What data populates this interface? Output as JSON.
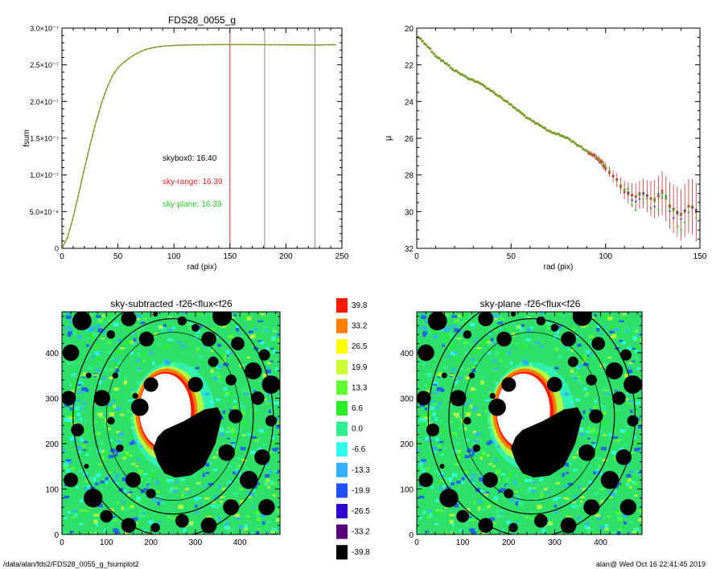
{
  "chart_data": [
    {
      "type": "line",
      "title": "FDS28_0055_g",
      "xlabel": "rad (pix)",
      "ylabel": "fsum",
      "xlim": [
        0,
        250
      ],
      "ylim": [
        0,
        3e-07
      ],
      "xticks": [
        "0",
        "50",
        "100",
        "150",
        "200",
        "250"
      ],
      "yticks": [
        "0",
        "5.0×10⁻⁸",
        "1.0×10⁻⁷",
        "1.5×10⁻⁷",
        "2.0×10⁻⁷",
        "2.5×10⁻⁷",
        "3.0×10⁻⁷"
      ],
      "vlines": [
        {
          "x": 150,
          "color": "#cc3333"
        },
        {
          "x": 181,
          "color": "#888888"
        },
        {
          "x": 226,
          "color": "#888888"
        }
      ],
      "series": [
        {
          "color": "#7a9a2a",
          "x": [
            0,
            5,
            10,
            15,
            20,
            25,
            30,
            35,
            40,
            45,
            50,
            55,
            60,
            65,
            70,
            75,
            80,
            90,
            100,
            110,
            120,
            130,
            140,
            150,
            160,
            170,
            180,
            190,
            200,
            210,
            220,
            230,
            240,
            245
          ],
          "y": [
            0,
            1.5e-08,
            4.2e-08,
            7.5e-08,
            1.08e-07,
            1.4e-07,
            1.7e-07,
            1.96e-07,
            2.18e-07,
            2.35e-07,
            2.46e-07,
            2.53e-07,
            2.59e-07,
            2.64e-07,
            2.68e-07,
            2.71e-07,
            2.73e-07,
            2.755e-07,
            2.765e-07,
            2.77e-07,
            2.772e-07,
            2.774e-07,
            2.775e-07,
            2.776e-07,
            2.776e-07,
            2.775e-07,
            2.774e-07,
            2.773e-07,
            2.772e-07,
            2.771e-07,
            2.77e-07,
            2.77e-07,
            2.775e-07,
            2.772e-07
          ]
        }
      ],
      "annotations": [
        {
          "text": "skybox0: 16.40",
          "color": "#000000"
        },
        {
          "text": "sky-range: 16.39",
          "color": "#ee2222"
        },
        {
          "text": "sky-plane: 16.39",
          "color": "#22cc22"
        }
      ]
    },
    {
      "type": "scatter",
      "xlabel": "rad (pix)",
      "ylabel": "μ",
      "xlim": [
        0,
        150
      ],
      "ylim": [
        32,
        20
      ],
      "xticks": [
        "0",
        "50",
        "100",
        "150"
      ],
      "yticks": [
        "20",
        "22",
        "24",
        "26",
        "28",
        "30",
        "32"
      ],
      "profile": {
        "x": [
          1,
          5,
          10,
          15,
          20,
          25,
          30,
          35,
          40,
          45,
          50,
          55,
          60,
          65,
          70,
          75,
          80,
          85,
          90,
          95,
          100,
          105,
          110,
          115,
          120,
          125,
          130,
          135,
          140,
          145,
          148
        ],
        "y": [
          20.5,
          20.9,
          21.5,
          21.9,
          22.3,
          22.6,
          22.85,
          23.1,
          23.45,
          23.8,
          24.2,
          24.6,
          25.0,
          25.3,
          25.6,
          25.8,
          26.0,
          26.35,
          26.7,
          27.0,
          27.6,
          28.2,
          28.8,
          29.2,
          29.0,
          29.4,
          29.0,
          29.8,
          30.2,
          29.6,
          30.0
        ],
        "err": [
          0.02,
          0.02,
          0.02,
          0.02,
          0.02,
          0.03,
          0.03,
          0.03,
          0.03,
          0.04,
          0.04,
          0.05,
          0.05,
          0.06,
          0.06,
          0.07,
          0.08,
          0.09,
          0.1,
          0.15,
          0.25,
          0.35,
          0.5,
          0.7,
          0.8,
          1.0,
          1.2,
          1.3,
          1.4,
          1.5,
          1.6
        ]
      },
      "series_colors": [
        "#7a9a2a",
        "#cc3333",
        "#3333cc",
        "#22cc22"
      ]
    },
    {
      "type": "heatmap",
      "title": "sky-subtracted -f26<flux<f26",
      "xlim": [
        0,
        490
      ],
      "ylim": [
        0,
        490
      ],
      "xticks": [
        "0",
        "100",
        "200",
        "300",
        "400"
      ],
      "yticks": [
        "0",
        "100",
        "200",
        "300",
        "400"
      ]
    },
    {
      "type": "heatmap",
      "title": "sky-plane -f26<flux<f26",
      "xlim": [
        0,
        490
      ],
      "ylim": [
        0,
        490
      ],
      "xticks": [
        "0",
        "100",
        "200",
        "300",
        "400"
      ],
      "yticks": [
        "0",
        "100",
        "200",
        "300",
        "400"
      ]
    }
  ],
  "colorbar": {
    "labels": [
      "39.8",
      "33.2",
      "26.5",
      "19.9",
      "13.3",
      "6.6",
      "0.0",
      "-6.6",
      "-13.3",
      "-19.9",
      "-26.5",
      "-33.2",
      "-39.8"
    ],
    "colors": [
      "#ff1a00",
      "#ff8000",
      "#ffff00",
      "#c8ff30",
      "#60ff30",
      "#28ee28",
      "#30ee90",
      "#30ffee",
      "#30b0ff",
      "#2050ff",
      "#3000d0",
      "#5a0078",
      "#000000"
    ]
  },
  "footer": {
    "left": "/data/alan/fds2/FDS28_0055_g_fsumplot2",
    "right": "alan@  Wed Oct 16 22:41:45 2019"
  }
}
